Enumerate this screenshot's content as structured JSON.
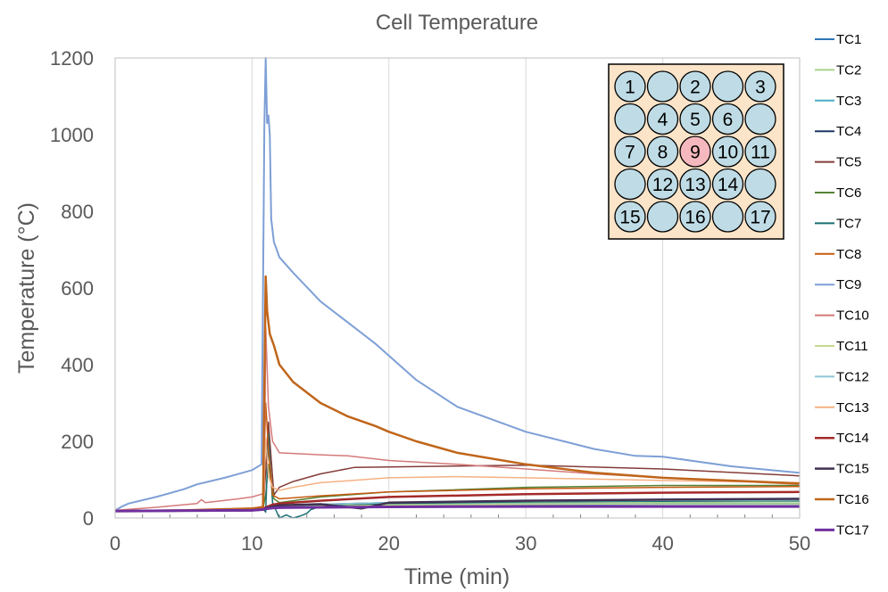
{
  "chart_data": {
    "type": "line",
    "title": "Cell Temperature",
    "xlabel": "Time (min)",
    "ylabel": "Temperature (°C)",
    "xlim": [
      0,
      50
    ],
    "ylim": [
      0,
      1200
    ],
    "xticks": [
      0,
      10,
      20,
      30,
      40,
      50
    ],
    "yticks": [
      0,
      200,
      400,
      600,
      800,
      1000,
      1200
    ],
    "grid": "vertical",
    "legend_position": "right",
    "series": [
      {
        "name": "TC1",
        "color": "#2E75B6",
        "width": 1.5,
        "x": [
          0,
          5,
          10,
          10.8,
          11,
          11.5,
          12,
          15,
          20,
          30,
          40,
          50
        ],
        "y": [
          18,
          19,
          20,
          22,
          24,
          28,
          30,
          32,
          34,
          35,
          36,
          36
        ]
      },
      {
        "name": "TC2",
        "color": "#A9D18E",
        "width": 1.5,
        "x": [
          0,
          5,
          10,
          10.8,
          11,
          11.5,
          12,
          15,
          20,
          30,
          40,
          50
        ],
        "y": [
          18,
          19,
          20,
          22,
          26,
          30,
          32,
          35,
          38,
          40,
          41,
          42
        ]
      },
      {
        "name": "TC3",
        "color": "#4BACC6",
        "width": 1.5,
        "x": [
          0,
          5,
          10,
          10.8,
          11,
          11.5,
          12,
          15,
          20,
          30,
          40,
          50
        ],
        "y": [
          18,
          19,
          20,
          21,
          24,
          28,
          30,
          32,
          35,
          37,
          38,
          38
        ]
      },
      {
        "name": "TC4",
        "color": "#1F3864",
        "width": 1.5,
        "x": [
          0,
          5,
          10,
          10.8,
          11,
          11.5,
          12,
          15,
          20,
          30,
          40,
          50
        ],
        "y": [
          18,
          19,
          20,
          22,
          26,
          30,
          33,
          36,
          40,
          43,
          44,
          45
        ]
      },
      {
        "name": "TC5",
        "color": "#843C39",
        "width": 1.5,
        "x": [
          0,
          5,
          10,
          10.8,
          11,
          11.2,
          11.6,
          12,
          13,
          15,
          17.5,
          20,
          30,
          40,
          50
        ],
        "y": [
          18,
          20,
          25,
          30,
          120,
          250,
          60,
          80,
          95,
          115,
          132,
          133,
          138,
          128,
          110
        ]
      },
      {
        "name": "TC6",
        "color": "#548235",
        "width": 1.5,
        "x": [
          0,
          5,
          10,
          10.8,
          11,
          11.2,
          11.6,
          12,
          15,
          20,
          30,
          40,
          50
        ],
        "y": [
          18,
          20,
          22,
          25,
          60,
          140,
          50,
          40,
          55,
          68,
          80,
          85,
          85
        ]
      },
      {
        "name": "TC7",
        "color": "#1A6E75",
        "width": 1.5,
        "x": [
          0,
          5,
          10,
          10.8,
          10.9,
          11,
          11.2,
          11.5,
          12,
          12.5,
          13,
          13.5,
          14,
          14.3,
          15,
          20,
          30,
          40,
          50
        ],
        "y": [
          18,
          19,
          20,
          22,
          20,
          15,
          220,
          40,
          0,
          8,
          0,
          5,
          12,
          22,
          30,
          38,
          42,
          44,
          45
        ]
      },
      {
        "name": "TC8",
        "color": "#C55A11",
        "width": 1.5,
        "x": [
          0,
          5,
          10,
          10.8,
          11,
          11.2,
          11.5,
          12,
          15,
          20,
          25,
          30,
          40,
          50
        ],
        "y": [
          18,
          20,
          25,
          30,
          300,
          180,
          60,
          50,
          58,
          68,
          72,
          76,
          80,
          82
        ]
      },
      {
        "name": "TC9",
        "color": "#7E9FD6",
        "width": 2,
        "x": [
          0,
          0.5,
          1,
          3,
          5,
          6,
          8,
          10,
          10.7,
          10.9,
          11,
          11.1,
          11.2,
          11.3,
          11.4,
          11.6,
          12,
          13,
          15,
          17,
          19,
          22,
          25,
          30,
          35,
          38,
          40,
          45,
          50
        ],
        "y": [
          20,
          30,
          38,
          55,
          75,
          88,
          105,
          125,
          140,
          1020,
          1200,
          1030,
          1050,
          1000,
          780,
          720,
          680,
          640,
          565,
          510,
          455,
          360,
          290,
          225,
          180,
          162,
          160,
          135,
          118
        ]
      },
      {
        "name": "TC10",
        "color": "#D47A7A",
        "width": 1.5,
        "x": [
          0,
          3,
          6,
          6.3,
          6.6,
          9,
          10,
          10.7,
          10.9,
          11,
          11.2,
          11.5,
          12,
          15,
          17,
          20,
          25,
          30,
          35,
          40,
          50
        ],
        "y": [
          20,
          28,
          38,
          48,
          40,
          50,
          55,
          62,
          65,
          500,
          290,
          200,
          170,
          165,
          162,
          150,
          140,
          128,
          115,
          105,
          88
        ]
      },
      {
        "name": "TC11",
        "color": "#C5D98A",
        "width": 1.5,
        "x": [
          0,
          5,
          10,
          10.8,
          11,
          11.5,
          12,
          15,
          20,
          30,
          40,
          50
        ],
        "y": [
          18,
          19,
          20,
          21,
          24,
          27,
          29,
          31,
          34,
          36,
          37,
          37
        ]
      },
      {
        "name": "TC12",
        "color": "#8CC8D9",
        "width": 1.5,
        "x": [
          0,
          5,
          10,
          10.8,
          11,
          11.5,
          12,
          15,
          20,
          30,
          40,
          50
        ],
        "y": [
          18,
          19,
          20,
          22,
          25,
          29,
          32,
          36,
          40,
          44,
          46,
          47
        ]
      },
      {
        "name": "TC13",
        "color": "#F4B183",
        "width": 1.5,
        "x": [
          0,
          5,
          10,
          10.8,
          11,
          11.2,
          11.5,
          12,
          13,
          15,
          20,
          25,
          30,
          40,
          50
        ],
        "y": [
          18,
          20,
          22,
          25,
          210,
          110,
          80,
          72,
          80,
          92,
          105,
          108,
          105,
          98,
          92
        ]
      },
      {
        "name": "TC14",
        "color": "#A52A2A",
        "width": 2.5,
        "x": [
          0,
          5,
          10,
          10.8,
          11,
          11.5,
          12,
          15,
          20,
          30,
          40,
          50
        ],
        "y": [
          18,
          19,
          20,
          22,
          28,
          35,
          38,
          45,
          55,
          62,
          66,
          68
        ]
      },
      {
        "name": "TC15",
        "color": "#403151",
        "width": 2.5,
        "x": [
          0,
          5,
          10,
          10.8,
          11,
          11.5,
          12,
          15,
          18,
          20,
          30,
          40,
          50
        ],
        "y": [
          18,
          19,
          20,
          22,
          26,
          30,
          33,
          36,
          25,
          40,
          45,
          48,
          50
        ]
      },
      {
        "name": "TC16",
        "color": "#C0651A",
        "width": 2.5,
        "x": [
          0,
          5,
          10,
          10.8,
          10.95,
          11,
          11.1,
          11.3,
          11.6,
          12,
          13,
          15,
          17,
          19,
          20,
          22,
          25,
          30,
          35,
          40,
          50
        ],
        "y": [
          18,
          20,
          25,
          28,
          500,
          630,
          540,
          480,
          450,
          400,
          355,
          300,
          265,
          240,
          225,
          200,
          170,
          140,
          118,
          105,
          90
        ]
      },
      {
        "name": "TC17",
        "color": "#7030A0",
        "width": 3,
        "x": [
          0,
          5,
          10,
          10.8,
          11,
          11.5,
          12,
          15,
          20,
          30,
          40,
          50
        ],
        "y": [
          18,
          19,
          20,
          22,
          24,
          26,
          27,
          28,
          29,
          30,
          30,
          30
        ]
      }
    ]
  },
  "inset": {
    "rows": [
      [
        "1",
        "",
        "2",
        "",
        "3"
      ],
      [
        "",
        "4",
        "5",
        "6",
        ""
      ],
      [
        "7",
        "8",
        "9",
        "10",
        "11"
      ],
      [
        "",
        "12",
        "13",
        "14",
        ""
      ],
      [
        "15",
        "",
        "16",
        "",
        "17"
      ]
    ],
    "highlighted": "9",
    "background_color": "#FCE4C8",
    "cell_color": "#BFDCE6",
    "highlight_color": "#F5B8BE"
  }
}
